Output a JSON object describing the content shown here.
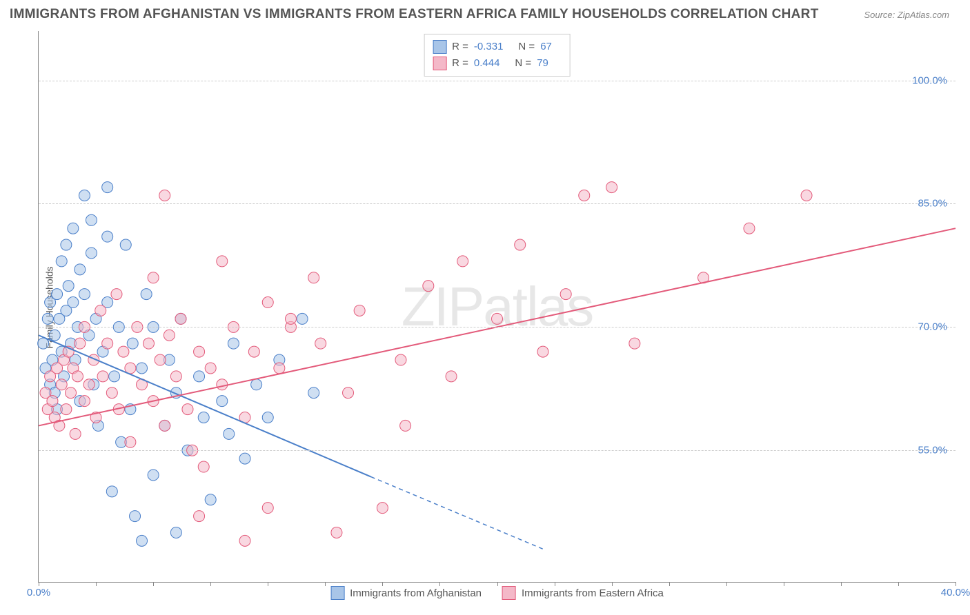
{
  "title": "IMMIGRANTS FROM AFGHANISTAN VS IMMIGRANTS FROM EASTERN AFRICA FAMILY HOUSEHOLDS CORRELATION CHART",
  "source": "Source: ZipAtlas.com",
  "ylabel": "Family Households",
  "watermark_a": "ZIP",
  "watermark_b": "atlas",
  "chart": {
    "type": "scatter",
    "xlim": [
      0,
      40
    ],
    "ylim": [
      39,
      106
    ],
    "xtick_major": [
      0,
      40
    ],
    "xtick_minor_step": 2.5,
    "ytick_labels": [
      55,
      70,
      85,
      100
    ],
    "ytick_suffix": ".0%",
    "xtick_suffix": ".0%",
    "grid_color": "#cccccc",
    "background_color": "#ffffff",
    "axis_color": "#888888",
    "tick_label_color": "#4a7fc9",
    "marker_radius": 8,
    "marker_opacity": 0.55,
    "line_width": 2,
    "series": [
      {
        "name": "Immigrants from Afghanistan",
        "color_stroke": "#4a7fc9",
        "color_fill": "#a8c5e8",
        "R": "-0.331",
        "N": "67",
        "trend": {
          "x1": 0,
          "y1": 69,
          "x2": 16,
          "y2": 50,
          "dash_after_x": 14.5,
          "dash_end_x": 22,
          "dash_end_y": 43
        },
        "points": [
          [
            0.2,
            68
          ],
          [
            0.3,
            65
          ],
          [
            0.4,
            71
          ],
          [
            0.5,
            63
          ],
          [
            0.5,
            73
          ],
          [
            0.6,
            66
          ],
          [
            0.7,
            69
          ],
          [
            0.7,
            62
          ],
          [
            0.8,
            74
          ],
          [
            0.8,
            60
          ],
          [
            0.9,
            71
          ],
          [
            1.0,
            67
          ],
          [
            1.0,
            78
          ],
          [
            1.1,
            64
          ],
          [
            1.2,
            80
          ],
          [
            1.2,
            72
          ],
          [
            1.3,
            75
          ],
          [
            1.4,
            68
          ],
          [
            1.5,
            82
          ],
          [
            1.5,
            73
          ],
          [
            1.6,
            66
          ],
          [
            1.7,
            70
          ],
          [
            1.8,
            77
          ],
          [
            1.8,
            61
          ],
          [
            2.0,
            74
          ],
          [
            2.0,
            86
          ],
          [
            2.2,
            69
          ],
          [
            2.3,
            79
          ],
          [
            2.4,
            63
          ],
          [
            2.5,
            71
          ],
          [
            2.6,
            58
          ],
          [
            2.8,
            67
          ],
          [
            3.0,
            81
          ],
          [
            3.0,
            73
          ],
          [
            3.2,
            50
          ],
          [
            3.3,
            64
          ],
          [
            3.5,
            70
          ],
          [
            3.6,
            56
          ],
          [
            3.8,
            80
          ],
          [
            4.0,
            60
          ],
          [
            4.1,
            68
          ],
          [
            4.2,
            47
          ],
          [
            4.5,
            65
          ],
          [
            4.7,
            74
          ],
          [
            5.0,
            52
          ],
          [
            5.0,
            70
          ],
          [
            5.5,
            58
          ],
          [
            5.7,
            66
          ],
          [
            6.0,
            62
          ],
          [
            6.0,
            45
          ],
          [
            6.2,
            71
          ],
          [
            6.5,
            55
          ],
          [
            7.0,
            64
          ],
          [
            7.2,
            59
          ],
          [
            7.5,
            49
          ],
          [
            8.0,
            61
          ],
          [
            8.3,
            57
          ],
          [
            8.5,
            68
          ],
          [
            9.0,
            54
          ],
          [
            9.5,
            63
          ],
          [
            10.0,
            59
          ],
          [
            10.5,
            66
          ],
          [
            11.5,
            71
          ],
          [
            12.0,
            62
          ],
          [
            3.0,
            87
          ],
          [
            2.3,
            83
          ],
          [
            4.5,
            44
          ]
        ]
      },
      {
        "name": "Immigrants from Eastern Africa",
        "color_stroke": "#e35a7a",
        "color_fill": "#f4b8c8",
        "R": "0.444",
        "N": "79",
        "trend": {
          "x1": 0,
          "y1": 58,
          "x2": 40,
          "y2": 82
        },
        "points": [
          [
            0.3,
            62
          ],
          [
            0.4,
            60
          ],
          [
            0.5,
            64
          ],
          [
            0.6,
            61
          ],
          [
            0.7,
            59
          ],
          [
            0.8,
            65
          ],
          [
            0.9,
            58
          ],
          [
            1.0,
            63
          ],
          [
            1.1,
            66
          ],
          [
            1.2,
            60
          ],
          [
            1.3,
            67
          ],
          [
            1.4,
            62
          ],
          [
            1.5,
            65
          ],
          [
            1.6,
            57
          ],
          [
            1.7,
            64
          ],
          [
            1.8,
            68
          ],
          [
            2.0,
            61
          ],
          [
            2.0,
            70
          ],
          [
            2.2,
            63
          ],
          [
            2.4,
            66
          ],
          [
            2.5,
            59
          ],
          [
            2.7,
            72
          ],
          [
            2.8,
            64
          ],
          [
            3.0,
            68
          ],
          [
            3.2,
            62
          ],
          [
            3.4,
            74
          ],
          [
            3.5,
            60
          ],
          [
            3.7,
            67
          ],
          [
            4.0,
            65
          ],
          [
            4.0,
            56
          ],
          [
            4.3,
            70
          ],
          [
            4.5,
            63
          ],
          [
            4.8,
            68
          ],
          [
            5.0,
            61
          ],
          [
            5.0,
            76
          ],
          [
            5.3,
            66
          ],
          [
            5.5,
            58
          ],
          [
            5.7,
            69
          ],
          [
            6.0,
            64
          ],
          [
            6.2,
            71
          ],
          [
            6.5,
            60
          ],
          [
            6.7,
            55
          ],
          [
            7.0,
            67
          ],
          [
            7.2,
            53
          ],
          [
            7.5,
            65
          ],
          [
            8.0,
            63
          ],
          [
            8.0,
            78
          ],
          [
            8.5,
            70
          ],
          [
            9.0,
            59
          ],
          [
            9.4,
            67
          ],
          [
            10.0,
            73
          ],
          [
            10.0,
            48
          ],
          [
            10.5,
            65
          ],
          [
            11.0,
            70
          ],
          [
            12.0,
            76
          ],
          [
            12.3,
            68
          ],
          [
            13.0,
            45
          ],
          [
            13.5,
            62
          ],
          [
            14.0,
            72
          ],
          [
            15.0,
            48
          ],
          [
            15.8,
            66
          ],
          [
            16.0,
            58
          ],
          [
            17.0,
            75
          ],
          [
            18.0,
            64
          ],
          [
            18.5,
            78
          ],
          [
            20.0,
            71
          ],
          [
            21.0,
            80
          ],
          [
            22.0,
            67
          ],
          [
            23.0,
            74
          ],
          [
            23.8,
            86
          ],
          [
            25.0,
            87
          ],
          [
            26.0,
            68
          ],
          [
            29.0,
            76
          ],
          [
            31.0,
            82
          ],
          [
            33.5,
            86
          ],
          [
            5.5,
            86
          ],
          [
            7.0,
            47
          ],
          [
            9.0,
            44
          ],
          [
            11.0,
            71
          ]
        ]
      }
    ],
    "legend_bottom": [
      {
        "label": "Immigrants from Afghanistan",
        "fill": "#a8c5e8",
        "stroke": "#4a7fc9"
      },
      {
        "label": "Immigrants from Eastern Africa",
        "fill": "#f4b8c8",
        "stroke": "#e35a7a"
      }
    ]
  }
}
